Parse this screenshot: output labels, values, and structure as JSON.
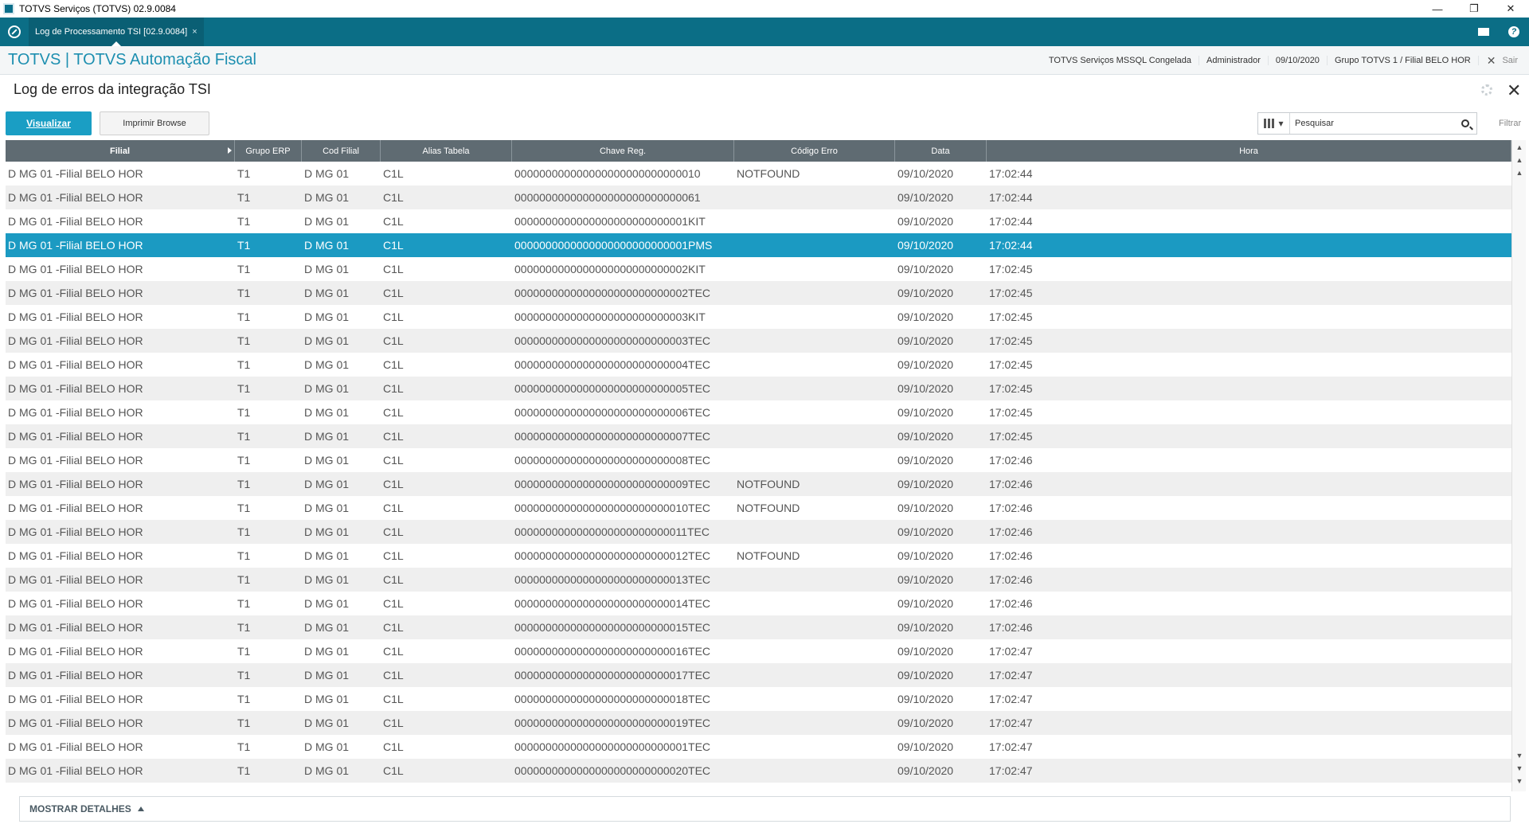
{
  "window": {
    "title": "TOTVS Serviços (TOTVS) 02.9.0084",
    "controls": {
      "minimize": "—",
      "restore": "❐",
      "close": "✕"
    }
  },
  "tabbar": {
    "tab_label": "Log de Processamento TSI [02.9.0084]",
    "tab_close": "×"
  },
  "header": {
    "brand": "TOTVS | TOTVS Automação Fiscal",
    "environment": "TOTVS Serviços MSSQL Congelada",
    "user": "Administrador",
    "date": "09/10/2020",
    "branch": "Grupo TOTVS 1 / Filial BELO HOR",
    "exit_label": "Sair"
  },
  "page": {
    "title": "Log de erros da integração TSI"
  },
  "toolbar": {
    "view_button": "Visualizar",
    "print_button": "Imprimir Browse",
    "search_placeholder": "Pesquisar",
    "filter_label": "Filtrar"
  },
  "grid": {
    "columns": [
      "Filial",
      "Grupo ERP",
      "Cod Filial",
      "Alias Tabela",
      "Chave Reg.",
      "Código Erro",
      "Data",
      "Hora"
    ],
    "selected_row_index": 3,
    "rows": [
      [
        "D MG 01 -Filial BELO HOR",
        "T1",
        "D MG 01",
        "C1L",
        "000000000000000000000000000010",
        "NOTFOUND",
        "09/10/2020",
        "17:02:44"
      ],
      [
        "D MG 01 -Filial BELO HOR",
        "T1",
        "D MG 01",
        "C1L",
        "000000000000000000000000000061",
        "",
        "09/10/2020",
        "17:02:44"
      ],
      [
        "D MG 01 -Filial BELO HOR",
        "T1",
        "D MG 01",
        "C1L",
        "0000000000000000000000000001KIT",
        "",
        "09/10/2020",
        "17:02:44"
      ],
      [
        "D MG 01 -Filial BELO HOR",
        "T1",
        "D MG 01",
        "C1L",
        "0000000000000000000000000001PMS",
        "",
        "09/10/2020",
        "17:02:44"
      ],
      [
        "D MG 01 -Filial BELO HOR",
        "T1",
        "D MG 01",
        "C1L",
        "0000000000000000000000000002KIT",
        "",
        "09/10/2020",
        "17:02:45"
      ],
      [
        "D MG 01 -Filial BELO HOR",
        "T1",
        "D MG 01",
        "C1L",
        "0000000000000000000000000002TEC",
        "",
        "09/10/2020",
        "17:02:45"
      ],
      [
        "D MG 01 -Filial BELO HOR",
        "T1",
        "D MG 01",
        "C1L",
        "0000000000000000000000000003KIT",
        "",
        "09/10/2020",
        "17:02:45"
      ],
      [
        "D MG 01 -Filial BELO HOR",
        "T1",
        "D MG 01",
        "C1L",
        "0000000000000000000000000003TEC",
        "",
        "09/10/2020",
        "17:02:45"
      ],
      [
        "D MG 01 -Filial BELO HOR",
        "T1",
        "D MG 01",
        "C1L",
        "0000000000000000000000000004TEC",
        "",
        "09/10/2020",
        "17:02:45"
      ],
      [
        "D MG 01 -Filial BELO HOR",
        "T1",
        "D MG 01",
        "C1L",
        "0000000000000000000000000005TEC",
        "",
        "09/10/2020",
        "17:02:45"
      ],
      [
        "D MG 01 -Filial BELO HOR",
        "T1",
        "D MG 01",
        "C1L",
        "0000000000000000000000000006TEC",
        "",
        "09/10/2020",
        "17:02:45"
      ],
      [
        "D MG 01 -Filial BELO HOR",
        "T1",
        "D MG 01",
        "C1L",
        "0000000000000000000000000007TEC",
        "",
        "09/10/2020",
        "17:02:45"
      ],
      [
        "D MG 01 -Filial BELO HOR",
        "T1",
        "D MG 01",
        "C1L",
        "0000000000000000000000000008TEC",
        "",
        "09/10/2020",
        "17:02:46"
      ],
      [
        "D MG 01 -Filial BELO HOR",
        "T1",
        "D MG 01",
        "C1L",
        "0000000000000000000000000009TEC",
        "NOTFOUND",
        "09/10/2020",
        "17:02:46"
      ],
      [
        "D MG 01 -Filial BELO HOR",
        "T1",
        "D MG 01",
        "C1L",
        "0000000000000000000000000010TEC",
        "NOTFOUND",
        "09/10/2020",
        "17:02:46"
      ],
      [
        "D MG 01 -Filial BELO HOR",
        "T1",
        "D MG 01",
        "C1L",
        "0000000000000000000000000011TEC",
        "",
        "09/10/2020",
        "17:02:46"
      ],
      [
        "D MG 01 -Filial BELO HOR",
        "T1",
        "D MG 01",
        "C1L",
        "0000000000000000000000000012TEC",
        "NOTFOUND",
        "09/10/2020",
        "17:02:46"
      ],
      [
        "D MG 01 -Filial BELO HOR",
        "T1",
        "D MG 01",
        "C1L",
        "0000000000000000000000000013TEC",
        "",
        "09/10/2020",
        "17:02:46"
      ],
      [
        "D MG 01 -Filial BELO HOR",
        "T1",
        "D MG 01",
        "C1L",
        "0000000000000000000000000014TEC",
        "",
        "09/10/2020",
        "17:02:46"
      ],
      [
        "D MG 01 -Filial BELO HOR",
        "T1",
        "D MG 01",
        "C1L",
        "0000000000000000000000000015TEC",
        "",
        "09/10/2020",
        "17:02:46"
      ],
      [
        "D MG 01 -Filial BELO HOR",
        "T1",
        "D MG 01",
        "C1L",
        "0000000000000000000000000016TEC",
        "",
        "09/10/2020",
        "17:02:47"
      ],
      [
        "D MG 01 -Filial BELO HOR",
        "T1",
        "D MG 01",
        "C1L",
        "0000000000000000000000000017TEC",
        "",
        "09/10/2020",
        "17:02:47"
      ],
      [
        "D MG 01 -Filial BELO HOR",
        "T1",
        "D MG 01",
        "C1L",
        "0000000000000000000000000018TEC",
        "",
        "09/10/2020",
        "17:02:47"
      ],
      [
        "D MG 01 -Filial BELO HOR",
        "T1",
        "D MG 01",
        "C1L",
        "0000000000000000000000000019TEC",
        "",
        "09/10/2020",
        "17:02:47"
      ],
      [
        "D MG 01 -Filial BELO HOR",
        "T1",
        "D MG 01",
        "C1L",
        "0000000000000000000000000001TEC",
        "",
        "09/10/2020",
        "17:02:47"
      ],
      [
        "D MG 01 -Filial BELO HOR",
        "T1",
        "D MG 01",
        "C1L",
        "0000000000000000000000000020TEC",
        "",
        "09/10/2020",
        "17:02:47"
      ]
    ]
  },
  "footer": {
    "details_toggle": "MOSTRAR DETALHES"
  },
  "colors": {
    "tabbar": "#0b6e86",
    "brand": "#1d8fb0",
    "primary_button": "#1a9ec4",
    "selected_row": "#1b9ac2",
    "grid_header": "#5f6b72"
  }
}
